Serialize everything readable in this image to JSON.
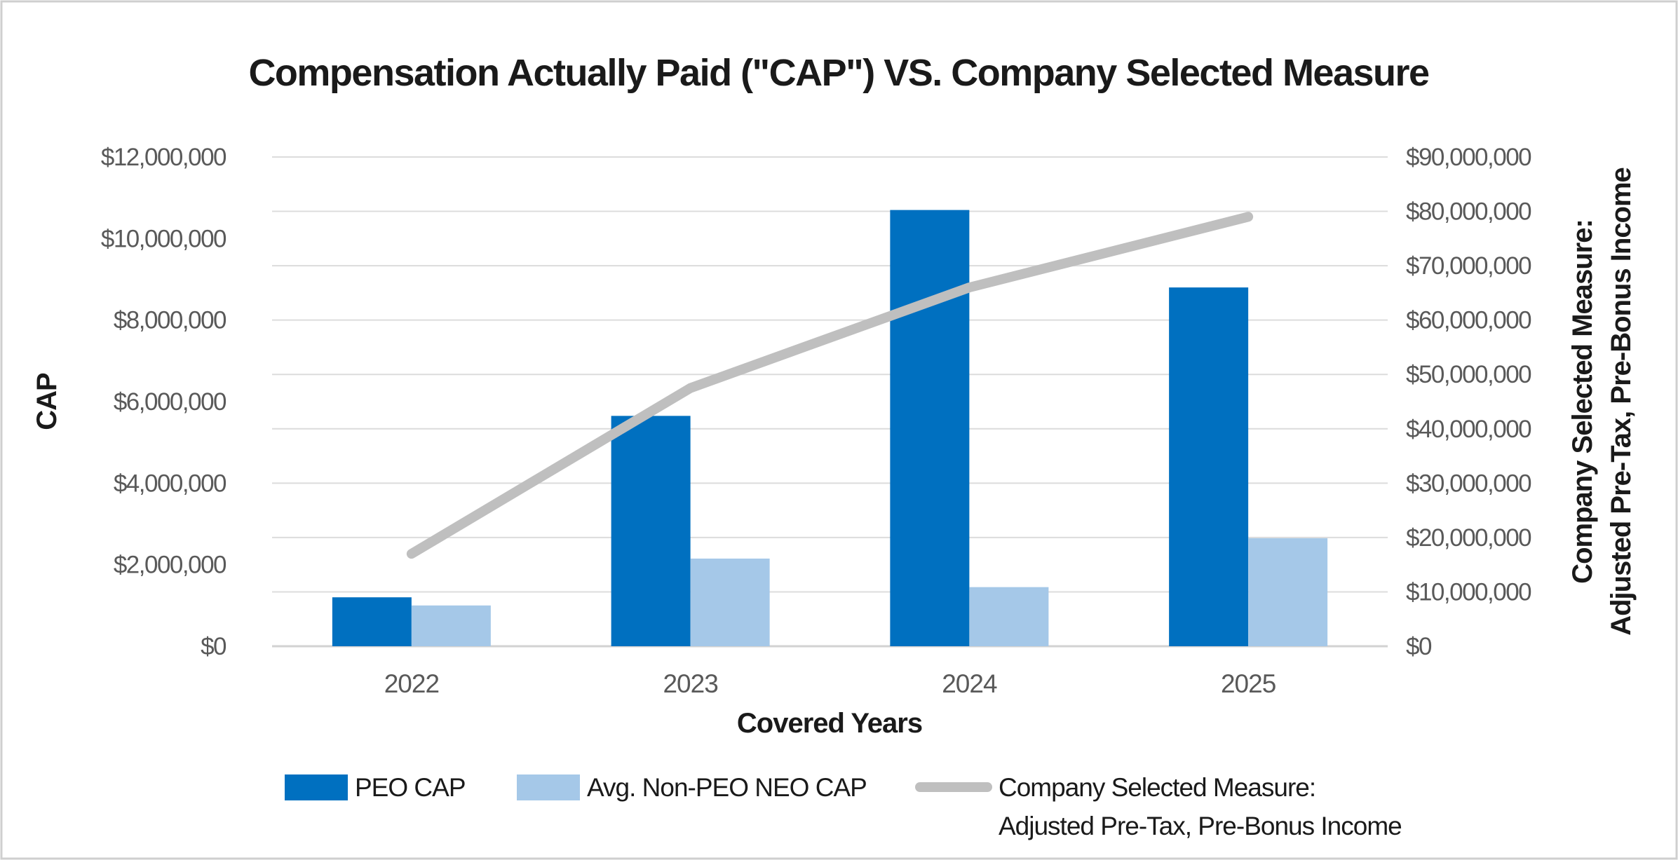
{
  "chart_data": {
    "type": "bar-line-combo",
    "title": "Compensation Actually Paid (\"CAP\") VS. Company Selected Measure",
    "categories": [
      "2022",
      "2023",
      "2024",
      "2025"
    ],
    "series": [
      {
        "name": "PEO CAP",
        "type": "bar",
        "axis": "left",
        "color": "#0070C0",
        "values": [
          1200000,
          5650000,
          10700000,
          8800000
        ]
      },
      {
        "name": "Avg. Non-PEO NEO CAP",
        "type": "bar",
        "axis": "left",
        "color": "#A5C8E8",
        "values": [
          1000000,
          2150000,
          1450000,
          2650000
        ]
      },
      {
        "name": "Company Selected Measure: Adjusted Pre-Tax, Pre-Bonus Income",
        "name_lines": [
          "Company Selected Measure:",
          "Adjusted Pre-Tax, Pre-Bonus Income"
        ],
        "type": "line",
        "axis": "right",
        "color": "#BFBFBF",
        "values": [
          17000000,
          47500000,
          66000000,
          79000000
        ]
      }
    ],
    "xlabel": "Covered Years",
    "ylabel_left": "CAP",
    "ylabel_right_line1": "Company Selected Measure:",
    "ylabel_right_line2": "Adjusted Pre-Tax, Pre-Bonus Income",
    "axes": {
      "left": {
        "min": 0,
        "max": 12000000,
        "step": 2000000,
        "tick_format": "$#,##0"
      },
      "right": {
        "min": 0,
        "max": 90000000,
        "step": 10000000,
        "tick_format": "$#,##0"
      }
    },
    "left_tick_labels": [
      "$0",
      "$2,000,000",
      "$4,000,000",
      "$6,000,000",
      "$8,000,000",
      "$10,000,000",
      "$12,000,000"
    ],
    "right_tick_labels": [
      "$0",
      "$10,000,000",
      "$20,000,000",
      "$30,000,000",
      "$40,000,000",
      "$50,000,000",
      "$60,000,000",
      "$70,000,000",
      "$80,000,000",
      "$90,000,000"
    ],
    "grid": "horizontal, right-axis intervals",
    "legend_position": "bottom"
  },
  "colors": {
    "peo_bar": "#0070C0",
    "non_peo_bar": "#A5C8E8",
    "csm_line": "#BFBFBF",
    "gridline": "#DCDCDC",
    "tick_text": "#595959",
    "title_text": "#1a1a1a",
    "frame_border": "#CFCFCF"
  }
}
